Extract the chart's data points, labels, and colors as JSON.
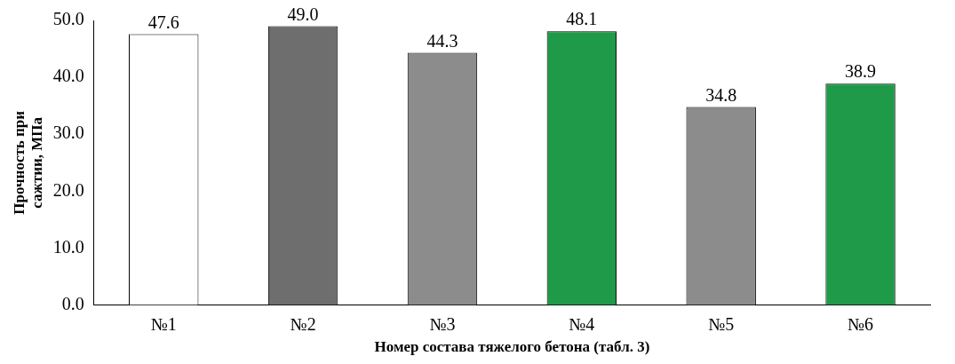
{
  "chart_data": {
    "type": "bar",
    "xlabel": "Номер состава тяжелого бетона (табл. 3)",
    "ylabel": "Прочность при сажтии, МПа",
    "categories": [
      "№1",
      "№2",
      "№3",
      "№4",
      "№5",
      "№6"
    ],
    "values": [
      47.6,
      49.0,
      44.3,
      48.1,
      34.8,
      38.9
    ],
    "colors": [
      "#ffffff",
      "#6e6e6e",
      "#8c8c8c",
      "#1f9a48",
      "#8c8c8c",
      "#1f9a48"
    ],
    "ylim": [
      0,
      50
    ],
    "yticks": [
      {
        "value": 0,
        "label": "0.0"
      },
      {
        "value": 10,
        "label": "10.0"
      },
      {
        "value": 20,
        "label": "20.0"
      },
      {
        "value": 30,
        "label": "30.0"
      },
      {
        "value": 40,
        "label": "40.0"
      },
      {
        "value": 50,
        "label": "50.0"
      }
    ],
    "value_labels": [
      "47.6",
      "49.0",
      "44.3",
      "48.1",
      "34.8",
      "38.9"
    ],
    "grid": false,
    "legend": false
  }
}
